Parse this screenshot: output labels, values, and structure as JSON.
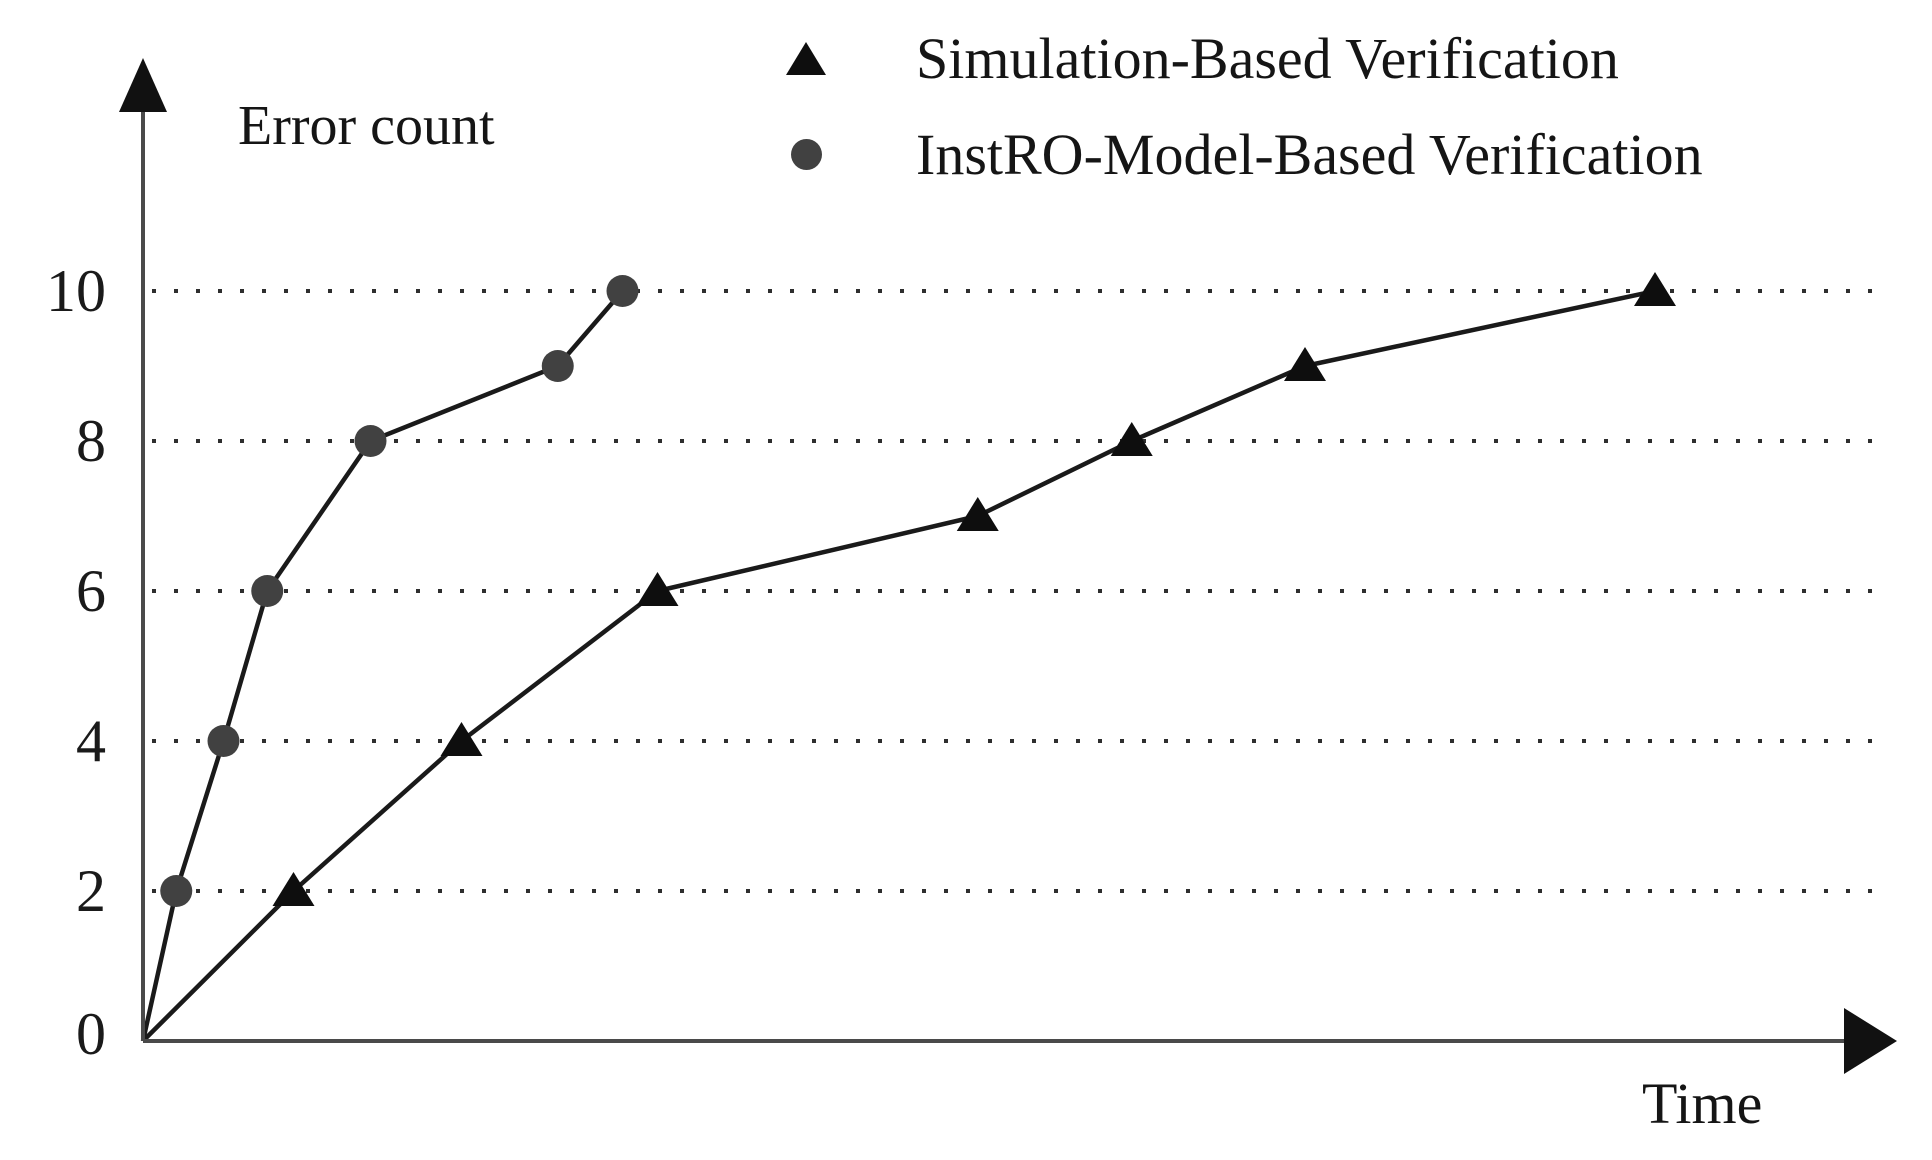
{
  "chart_data": {
    "type": "line",
    "title": "",
    "ylabel": "Error count",
    "xlabel": "Time",
    "y_ticks": [
      0,
      2,
      4,
      6,
      8,
      10
    ],
    "grid_y": [
      2,
      4,
      6,
      8,
      10
    ],
    "ylim": [
      0,
      13
    ],
    "xlim": [
      0,
      100
    ],
    "x_unit": "relative (x axis has no tick labels)",
    "grid": "horizontal dotted lines at y = 2,4,6,8,10",
    "legend_position": "top-center",
    "series": [
      {
        "name": "Simulation-Based Verification",
        "marker": "triangle",
        "marker_color": "#0e0e0e",
        "line_color": "#1a1a1a",
        "points": [
          {
            "x": 0,
            "y": 0
          },
          {
            "x": 8.6,
            "y": 2
          },
          {
            "x": 18.2,
            "y": 4
          },
          {
            "x": 29.4,
            "y": 6
          },
          {
            "x": 47.7,
            "y": 7
          },
          {
            "x": 56.5,
            "y": 8
          },
          {
            "x": 66.4,
            "y": 9
          },
          {
            "x": 86.4,
            "y": 10
          }
        ]
      },
      {
        "name": "InstRO-Model-Based Verification",
        "marker": "circle",
        "marker_color": "#414141",
        "line_color": "#1a1a1a",
        "points": [
          {
            "x": 0,
            "y": 0
          },
          {
            "x": 1.9,
            "y": 2
          },
          {
            "x": 4.6,
            "y": 4
          },
          {
            "x": 7.1,
            "y": 6
          },
          {
            "x": 13.0,
            "y": 8
          },
          {
            "x": 23.7,
            "y": 9
          },
          {
            "x": 27.4,
            "y": 10
          }
        ]
      }
    ],
    "colors": {
      "background": "#ffffff",
      "axis": "#4a4a4a",
      "arrowhead": "#111111",
      "gridline": "#2e2e2e",
      "text": "#151515"
    }
  }
}
